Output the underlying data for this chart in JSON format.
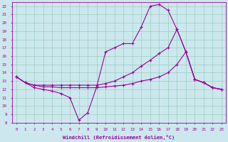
{
  "xlabel": "Windchill (Refroidissement éolien,°C)",
  "bg_color": "#cce8ee",
  "grid_color": "#99ccbb",
  "line_color": "#990099",
  "xlim": [
    -0.5,
    23.5
  ],
  "ylim": [
    8,
    22.5
  ],
  "xticks": [
    0,
    1,
    2,
    3,
    4,
    5,
    6,
    7,
    8,
    9,
    10,
    11,
    12,
    13,
    14,
    15,
    16,
    17,
    18,
    19,
    20,
    21,
    22,
    23
  ],
  "yticks": [
    8,
    9,
    10,
    11,
    12,
    13,
    14,
    15,
    16,
    17,
    18,
    19,
    20,
    21,
    22
  ],
  "line1_x": [
    0,
    1,
    2,
    3,
    4,
    5,
    6,
    7,
    8,
    9,
    10,
    11,
    12,
    13,
    14,
    15,
    16,
    17,
    18,
    19,
    20,
    21,
    22,
    23
  ],
  "line1_y": [
    13.5,
    12.8,
    12.2,
    12.0,
    11.8,
    11.5,
    11.0,
    8.3,
    9.2,
    12.3,
    16.5,
    17.0,
    17.5,
    17.5,
    19.5,
    22.0,
    22.2,
    21.5,
    19.2,
    16.5,
    13.2,
    12.8,
    12.2,
    12.0
  ],
  "line2_x": [
    0,
    1,
    2,
    3,
    4,
    5,
    6,
    7,
    8,
    9,
    10,
    11,
    12,
    13,
    14,
    15,
    16,
    17,
    18,
    19,
    20,
    21,
    22,
    23
  ],
  "line2_y": [
    13.5,
    12.8,
    12.5,
    12.3,
    12.3,
    12.2,
    12.2,
    12.2,
    12.2,
    12.2,
    12.3,
    12.4,
    12.5,
    12.7,
    13.0,
    13.2,
    13.5,
    14.0,
    15.0,
    16.5,
    13.2,
    12.8,
    12.2,
    12.0
  ],
  "line3_x": [
    0,
    1,
    2,
    3,
    4,
    5,
    6,
    7,
    8,
    9,
    10,
    11,
    12,
    13,
    14,
    15,
    16,
    17,
    18,
    19,
    20,
    21,
    22,
    23
  ],
  "line3_y": [
    13.5,
    12.8,
    12.5,
    12.5,
    12.5,
    12.5,
    12.5,
    12.5,
    12.5,
    12.5,
    12.7,
    13.0,
    13.5,
    14.0,
    14.8,
    15.5,
    16.3,
    17.0,
    19.2,
    16.5,
    13.2,
    12.8,
    12.2,
    12.0
  ]
}
